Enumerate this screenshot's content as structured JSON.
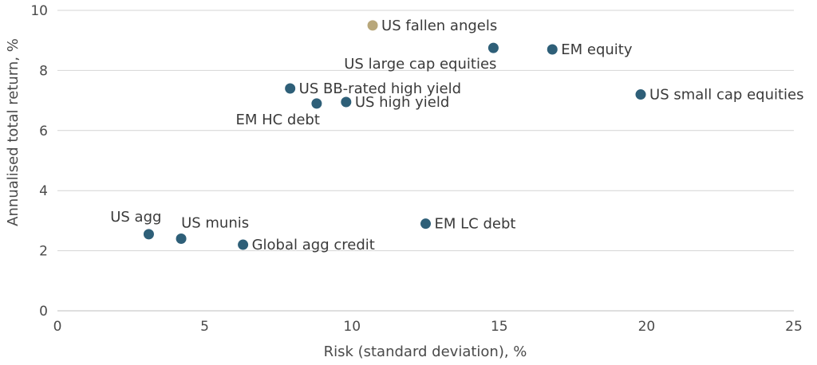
{
  "chart_data": {
    "type": "scatter",
    "xlabel": "Risk (standard deviation), %",
    "ylabel": "Annualised total return, %",
    "xlim": [
      0,
      25
    ],
    "ylim": [
      0,
      10
    ],
    "x_ticks": [
      0,
      5,
      10,
      15,
      20,
      25
    ],
    "y_ticks": [
      0,
      2,
      4,
      6,
      8,
      10
    ],
    "grid": "horizontal",
    "colors": {
      "default": "#2e5f78",
      "highlight": "#b8a77a"
    },
    "points": [
      {
        "label": "US fallen angels",
        "x": 10.7,
        "y": 9.5,
        "highlight": true,
        "label_pos": "right"
      },
      {
        "label": "US large cap equities",
        "x": 14.8,
        "y": 8.75,
        "highlight": false,
        "label_pos": "below-left"
      },
      {
        "label": "EM equity",
        "x": 16.8,
        "y": 8.7,
        "highlight": false,
        "label_pos": "right"
      },
      {
        "label": "US BB-rated high yield",
        "x": 7.9,
        "y": 7.4,
        "highlight": false,
        "label_pos": "right"
      },
      {
        "label": "US small cap equities",
        "x": 19.8,
        "y": 7.2,
        "highlight": false,
        "label_pos": "right"
      },
      {
        "label": "US high yield",
        "x": 9.8,
        "y": 6.95,
        "highlight": false,
        "label_pos": "right"
      },
      {
        "label": "EM HC debt",
        "x": 8.8,
        "y": 6.9,
        "highlight": false,
        "label_pos": "below-left"
      },
      {
        "label": "EM LC debt",
        "x": 12.5,
        "y": 2.9,
        "highlight": false,
        "label_pos": "right"
      },
      {
        "label": "US agg",
        "x": 3.1,
        "y": 2.55,
        "highlight": false,
        "label_pos": "above-left"
      },
      {
        "label": "US munis",
        "x": 4.2,
        "y": 2.4,
        "highlight": false,
        "label_pos": "above-right"
      },
      {
        "label": "Global agg credit",
        "x": 6.3,
        "y": 2.2,
        "highlight": false,
        "label_pos": "right"
      }
    ]
  }
}
